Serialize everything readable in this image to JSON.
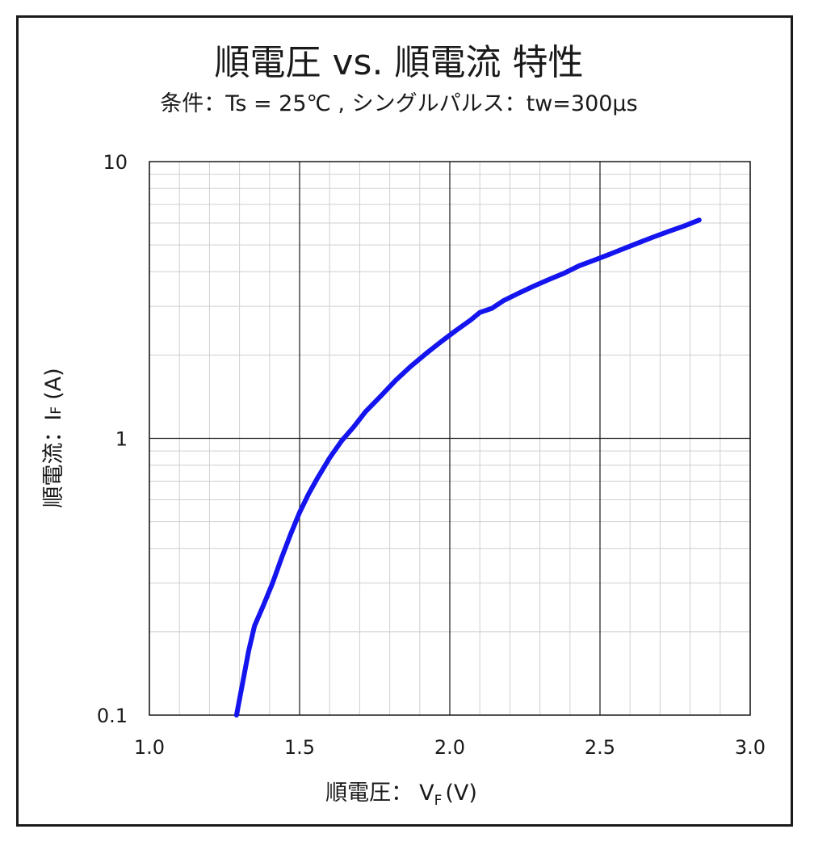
{
  "chart_data": {
    "type": "line",
    "title": "順電圧 vs. 順電流 特性",
    "subtitle": "条件：Ts = 25℃ , シングルパルス：tw=300μs",
    "xlabel": {
      "main": "順電圧：",
      "symbol": "V",
      "subscript": "F",
      "unit": "(V)"
    },
    "ylabel": {
      "main": "順電流：",
      "symbol": "I",
      "subscript": "F",
      "unit": "(A)"
    },
    "xlim": [
      1.0,
      3.0
    ],
    "ylim": [
      0.1,
      10
    ],
    "yscale": "log",
    "grid": true,
    "x_ticks": [
      "1.0",
      "1.5",
      "2.0",
      "2.5",
      "3.0"
    ],
    "y_ticks": [
      "0.1",
      "1",
      "10"
    ],
    "line_color": "#1414ee",
    "series": [
      {
        "x": [
          1.29,
          1.31,
          1.33,
          1.35,
          1.38,
          1.41,
          1.44,
          1.47,
          1.5,
          1.53,
          1.56,
          1.6,
          1.64,
          1.68,
          1.72,
          1.77,
          1.82,
          1.87,
          1.92,
          1.97,
          2.02,
          2.07,
          2.1,
          2.14,
          2.18,
          2.23,
          2.28,
          2.33,
          2.38,
          2.43,
          2.48,
          2.53,
          2.58,
          2.63,
          2.68,
          2.73,
          2.78,
          2.83
        ],
        "y": [
          0.1,
          0.13,
          0.17,
          0.21,
          0.25,
          0.3,
          0.37,
          0.45,
          0.54,
          0.63,
          0.72,
          0.85,
          0.98,
          1.1,
          1.25,
          1.42,
          1.62,
          1.82,
          2.02,
          2.23,
          2.45,
          2.68,
          2.85,
          2.95,
          3.15,
          3.35,
          3.55,
          3.75,
          3.95,
          4.2,
          4.4,
          4.62,
          4.85,
          5.1,
          5.35,
          5.6,
          5.85,
          6.15
        ]
      }
    ]
  }
}
